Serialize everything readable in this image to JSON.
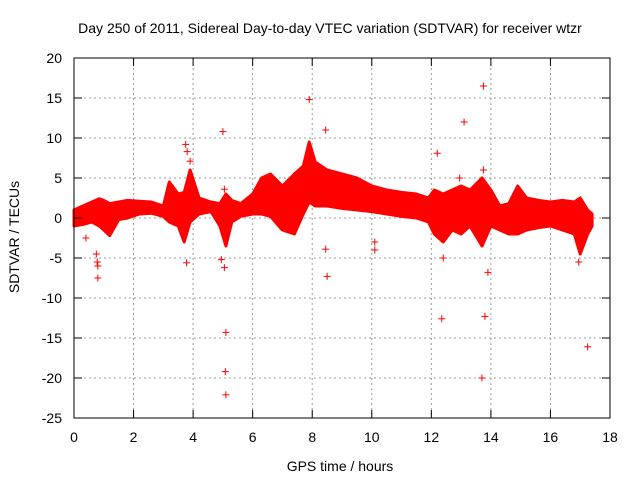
{
  "chart_data": {
    "type": "scatter",
    "title": "Day 250 of 2011, Sidereal Day-to-day VTEC variation (SDTVAR) for receiver wtzr",
    "xlabel": "GPS time / hours",
    "ylabel": "SDTVAR / TECUs",
    "xlim": [
      0,
      18
    ],
    "ylim": [
      -25,
      20
    ],
    "xticks": [
      0,
      2,
      4,
      6,
      8,
      10,
      12,
      14,
      16,
      18
    ],
    "yticks": [
      -25,
      -20,
      -15,
      -10,
      -5,
      0,
      5,
      10,
      15,
      20
    ],
    "grid": true,
    "marker": "+",
    "color": "#ff0000",
    "series": [
      {
        "name": "SDTVAR",
        "x": [
          0.4,
          0.75,
          0.78,
          0.8,
          0.8,
          3.75,
          3.8,
          3.78,
          3.9,
          4.95,
          5.0,
          5.05,
          5.05,
          5.1,
          5.08,
          7.9,
          8.45,
          8.5,
          8.45,
          10.1,
          10.1,
          12.2,
          12.35,
          12.4,
          12.95,
          13.1,
          13.7,
          13.75,
          13.8,
          13.75,
          13.9,
          17.25,
          16.95,
          5.1
        ],
        "y": [
          -2.5,
          -4.5,
          -5.5,
          -6.0,
          -7.5,
          9.2,
          8.3,
          -5.6,
          7.1,
          -5.2,
          10.8,
          3.6,
          -6.2,
          -14.3,
          -19.2,
          14.8,
          11.0,
          -7.3,
          -3.9,
          -3.0,
          -4.0,
          8.1,
          -12.6,
          -5.0,
          5.0,
          12.0,
          -20.0,
          16.5,
          -12.3,
          6.0,
          -6.8,
          -16.1,
          -5.5,
          -22.1
        ]
      }
    ],
    "band": {
      "x": [
        0,
        0.3,
        0.6,
        0.85,
        1.0,
        1.2,
        1.5,
        1.8,
        2.2,
        2.6,
        3.0,
        3.2,
        3.5,
        3.7,
        3.9,
        4.2,
        4.6,
        4.9,
        5.1,
        5.3,
        5.6,
        6.0,
        6.3,
        6.6,
        7.0,
        7.4,
        7.7,
        7.9,
        8.1,
        8.5,
        9.0,
        9.5,
        10.0,
        10.5,
        11.0,
        11.5,
        11.9,
        12.1,
        12.4,
        12.7,
        13.0,
        13.3,
        13.7,
        14.0,
        14.3,
        14.6,
        14.9,
        15.2,
        15.6,
        16.0,
        16.4,
        16.8,
        17.0,
        17.25,
        17.4
      ],
      "upper": [
        1.0,
        1.5,
        2.0,
        2.4,
        2.2,
        1.8,
        2.0,
        2.2,
        2.1,
        2.0,
        1.5,
        4.5,
        3.0,
        3.2,
        6.0,
        2.5,
        2.0,
        1.8,
        3.0,
        2.2,
        1.8,
        3.0,
        5.0,
        5.5,
        4.0,
        5.5,
        6.5,
        9.5,
        7.0,
        6.0,
        5.5,
        5.0,
        4.0,
        3.5,
        3.2,
        3.0,
        2.5,
        3.5,
        3.0,
        3.5,
        4.0,
        3.5,
        5.0,
        3.5,
        1.5,
        1.8,
        4.0,
        2.5,
        2.2,
        2.0,
        2.2,
        2.0,
        2.5,
        1.0,
        0.5
      ],
      "lower": [
        -1.0,
        -0.8,
        -0.5,
        -1.0,
        -1.5,
        -2.2,
        -0.2,
        0.0,
        0.5,
        0.6,
        0.2,
        -0.5,
        -1.0,
        -3.0,
        -0.5,
        0.5,
        0.8,
        -1.0,
        -3.5,
        -0.5,
        0.2,
        0.5,
        0.5,
        0.2,
        -1.5,
        -2.0,
        0.5,
        2.0,
        1.5,
        1.5,
        1.2,
        1.0,
        0.8,
        0.5,
        0.2,
        0.0,
        -0.5,
        -2.0,
        -3.0,
        -1.5,
        -2.0,
        -1.0,
        -3.5,
        -1.0,
        -1.5,
        -2.0,
        -2.0,
        -1.5,
        -1.2,
        -1.0,
        -1.5,
        -2.0,
        -4.5,
        -2.0,
        -1.0
      ]
    }
  }
}
